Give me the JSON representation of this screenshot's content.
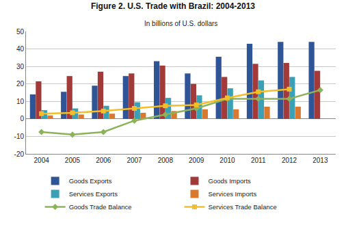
{
  "chart_data": {
    "type": "bar",
    "title": "Figure 2. U.S. Trade with Brazil: 2004-2013",
    "subtitle": "In billions of U.S. dollars",
    "categories": [
      "2004",
      "2005",
      "2006",
      "2007",
      "2008",
      "2009",
      "2010",
      "2011",
      "2012",
      "2013"
    ],
    "series": [
      {
        "name": "Goods Exports",
        "type": "bar",
        "color": "#2f5597",
        "values": [
          14,
          15.5,
          19,
          24.5,
          33,
          26,
          35.5,
          43,
          44,
          44
        ]
      },
      {
        "name": "Goods Imports",
        "type": "bar",
        "color": "#a33a3a",
        "values": [
          21.5,
          24.5,
          27,
          26,
          30.5,
          20,
          24,
          31.5,
          32,
          27.5
        ]
      },
      {
        "name": "Services Exports",
        "type": "bar",
        "color": "#3aa0b5",
        "values": [
          5,
          6,
          7.5,
          9.5,
          12,
          13.5,
          17.5,
          22,
          24,
          null
        ]
      },
      {
        "name": "Services Imports",
        "type": "bar",
        "color": "#d9782f",
        "values": [
          2,
          2.5,
          3,
          3.5,
          4.5,
          5.5,
          5.5,
          7,
          7,
          null
        ]
      },
      {
        "name": "Goods Trade Balance",
        "type": "line",
        "color": "#8db35a",
        "marker": "diamond",
        "line_style": "solid",
        "values": [
          -7.5,
          -9,
          -7.5,
          -1,
          2.5,
          6,
          11.5,
          11.5,
          11.5,
          16.5
        ]
      },
      {
        "name": "Services Trade Balance",
        "type": "line",
        "color": "#f2be2a",
        "marker": "square",
        "line_style": "solid",
        "values": [
          3,
          3.5,
          4.5,
          6,
          7.5,
          8,
          12,
          15.5,
          17,
          null
        ]
      }
    ],
    "ylim": [
      -20,
      50
    ],
    "yticks": [
      -20,
      -10,
      0,
      10,
      20,
      30,
      40,
      50
    ],
    "grid": true,
    "legend": "bottom"
  }
}
